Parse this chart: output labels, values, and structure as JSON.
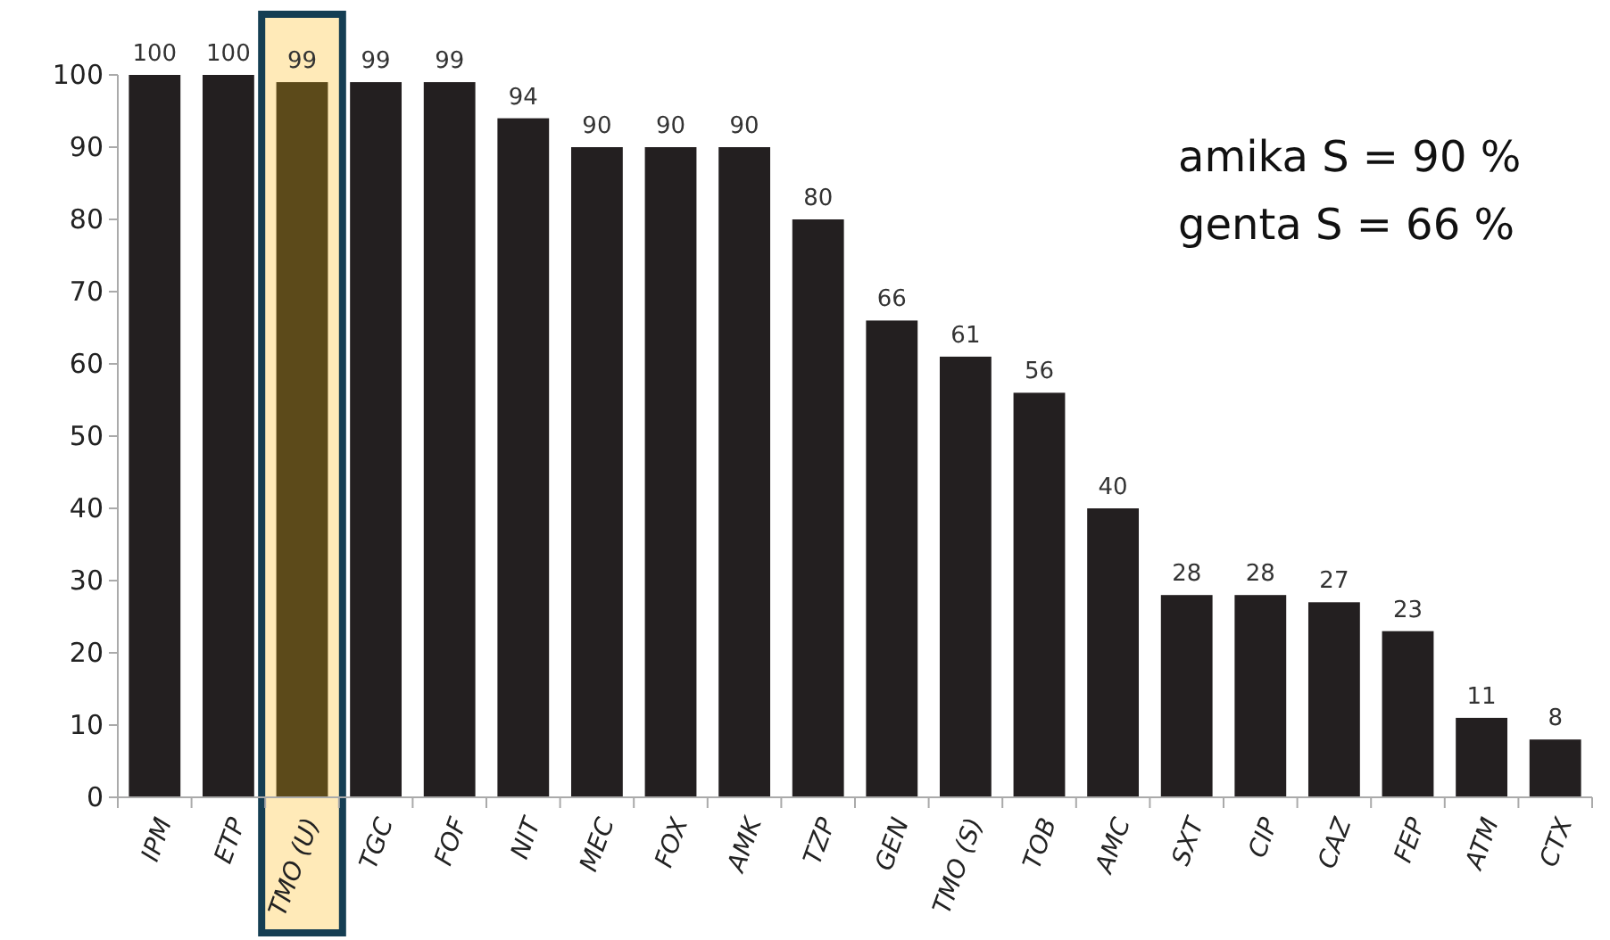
{
  "chart_data": {
    "type": "bar",
    "categories": [
      "IPM",
      "ETP",
      "TMO (U)",
      "TGC",
      "FOF",
      "NIT",
      "MEC",
      "FOX",
      "AMK",
      "TZP",
      "GEN",
      "TMO (S)",
      "TOB",
      "AMC",
      "SXT",
      "CIP",
      "CAZ",
      "FEP",
      "ATM",
      "CTX"
    ],
    "values": [
      100,
      100,
      99,
      99,
      99,
      94,
      90,
      90,
      90,
      80,
      66,
      61,
      56,
      40,
      28,
      28,
      27,
      23,
      11,
      8
    ],
    "colors": [
      "#231f20",
      "#231f20",
      "#5c4a1a",
      "#231f20",
      "#231f20",
      "#231f20",
      "#231f20",
      "#231f20",
      "#231f20",
      "#231f20",
      "#231f20",
      "#231f20",
      "#231f20",
      "#231f20",
      "#231f20",
      "#231f20",
      "#231f20",
      "#231f20",
      "#231f20",
      "#231f20"
    ],
    "ylim": [
      0,
      100
    ],
    "yticks": [
      0,
      10,
      20,
      30,
      40,
      50,
      60,
      70,
      80,
      90,
      100
    ],
    "data_labels": true,
    "grid": false,
    "annotations": [
      "amika S = 90 %",
      "genta S = 66 %"
    ]
  }
}
